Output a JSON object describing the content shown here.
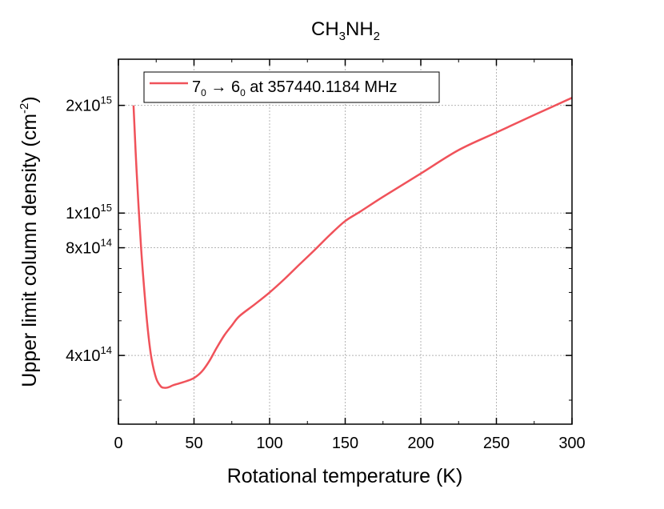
{
  "chart_data": {
    "type": "line",
    "title": {
      "main": "CH",
      "sub1": "3",
      "mid": "NH",
      "sub2": "2"
    },
    "xlabel": "Rotational temperature (K)",
    "ylabel": {
      "main": "Upper limit column density (cm",
      "sup": "-2",
      "close": ")"
    },
    "xlim": [
      0,
      300
    ],
    "ylim_log10": [
      14.41,
      15.43
    ],
    "yscale": "log",
    "grid": true,
    "legend_position": "top-left",
    "x_ticks": [
      "0",
      "50",
      "100",
      "150",
      "200",
      "250",
      "300"
    ],
    "y_ticks": [
      {
        "value": 400000000000000,
        "mant": "4x10",
        "exp": "14"
      },
      {
        "value": 800000000000000,
        "mant": "8x10",
        "exp": "14"
      },
      {
        "value": 1000000000000000,
        "mant": "1x10",
        "exp": "15"
      },
      {
        "value": 2000000000000000,
        "mant": "2x10",
        "exp": "15"
      }
    ],
    "series": [
      {
        "legend": {
          "a": "7",
          "a_sub": "0",
          "arrow": " → ",
          "b": "6",
          "b_sub": "0",
          "rest": " at 357440.1184 MHz"
        },
        "color": "#f0525a",
        "x": [
          10,
          12,
          15,
          18,
          20,
          22,
          25,
          28,
          30,
          32,
          34,
          36,
          40,
          45,
          50,
          55,
          60,
          65,
          70,
          75,
          80,
          90,
          100,
          110,
          120,
          130,
          140,
          150,
          160,
          175,
          200,
          225,
          250,
          275,
          300
        ],
        "y": [
          2000000000000000.0,
          1320000000000000.0,
          800000000000000.0,
          550000000000000.0,
          450000000000000.0,
          390000000000000.0,
          345000000000000.0,
          328000000000000.0,
          325000000000000.0,
          325000000000000.0,
          327000000000000.0,
          330000000000000.0,
          334000000000000.0,
          339000000000000.0,
          346000000000000.0,
          360000000000000.0,
          385000000000000.0,
          420000000000000.0,
          455000000000000.0,
          485000000000000.0,
          515000000000000.0,
          555000000000000.0,
          600000000000000.0,
          655000000000000.0,
          720000000000000.0,
          790000000000000.0,
          870000000000000.0,
          950000000000000.0,
          1010000000000000.0,
          1110000000000000.0,
          1290000000000000.0,
          1500000000000000.0,
          1680000000000000.0,
          1880000000000000.0,
          2100000000000000.0
        ]
      }
    ]
  }
}
